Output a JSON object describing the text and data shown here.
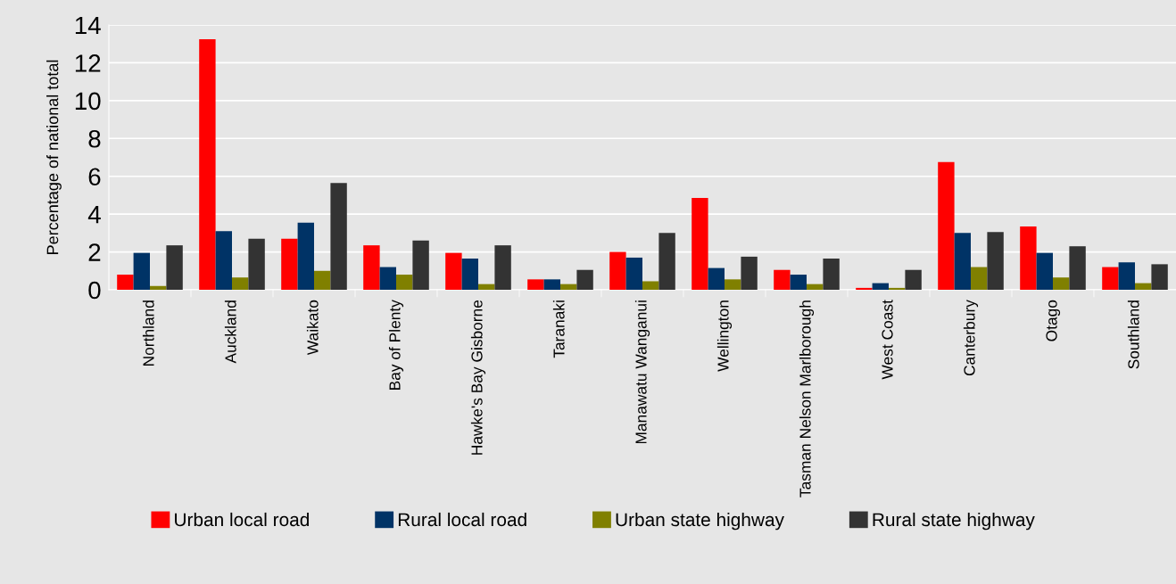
{
  "chart_data": {
    "type": "bar",
    "ylabel": "Percentage of national total",
    "categories": [
      "Northland",
      "Auckland",
      "Waikato",
      "Bay of Plenty",
      "Hawke's Bay Gisborne",
      "Taranaki",
      "Manawatu Wanganui",
      "Wellington",
      "Tasman Nelson Marlborough",
      "West Coast",
      "Canterbury",
      "Otago",
      "Southland"
    ],
    "series": [
      {
        "name": "Urban local road",
        "color": "#ff0000",
        "values": [
          0.8,
          13.25,
          2.7,
          2.35,
          1.95,
          0.55,
          2.0,
          4.85,
          1.05,
          0.1,
          6.75,
          3.35,
          1.2
        ]
      },
      {
        "name": "Rural local road",
        "color": "#003366",
        "values": [
          1.95,
          3.1,
          3.55,
          1.2,
          1.65,
          0.55,
          1.7,
          1.15,
          0.8,
          0.35,
          3.0,
          1.95,
          1.45
        ]
      },
      {
        "name": "Urban state highway",
        "color": "#808000",
        "values": [
          0.2,
          0.65,
          1.0,
          0.8,
          0.3,
          0.3,
          0.45,
          0.55,
          0.3,
          0.1,
          1.2,
          0.65,
          0.35
        ]
      },
      {
        "name": "Rural state highway",
        "color": "#333333",
        "values": [
          2.35,
          2.7,
          5.65,
          2.6,
          2.35,
          1.05,
          3.0,
          1.75,
          1.65,
          1.05,
          3.05,
          2.3,
          1.35
        ]
      }
    ],
    "ylim": [
      0,
      14
    ],
    "yticks": [
      0,
      2,
      4,
      6,
      8,
      10,
      12,
      14
    ],
    "grid": "y",
    "legend": "bottom"
  }
}
